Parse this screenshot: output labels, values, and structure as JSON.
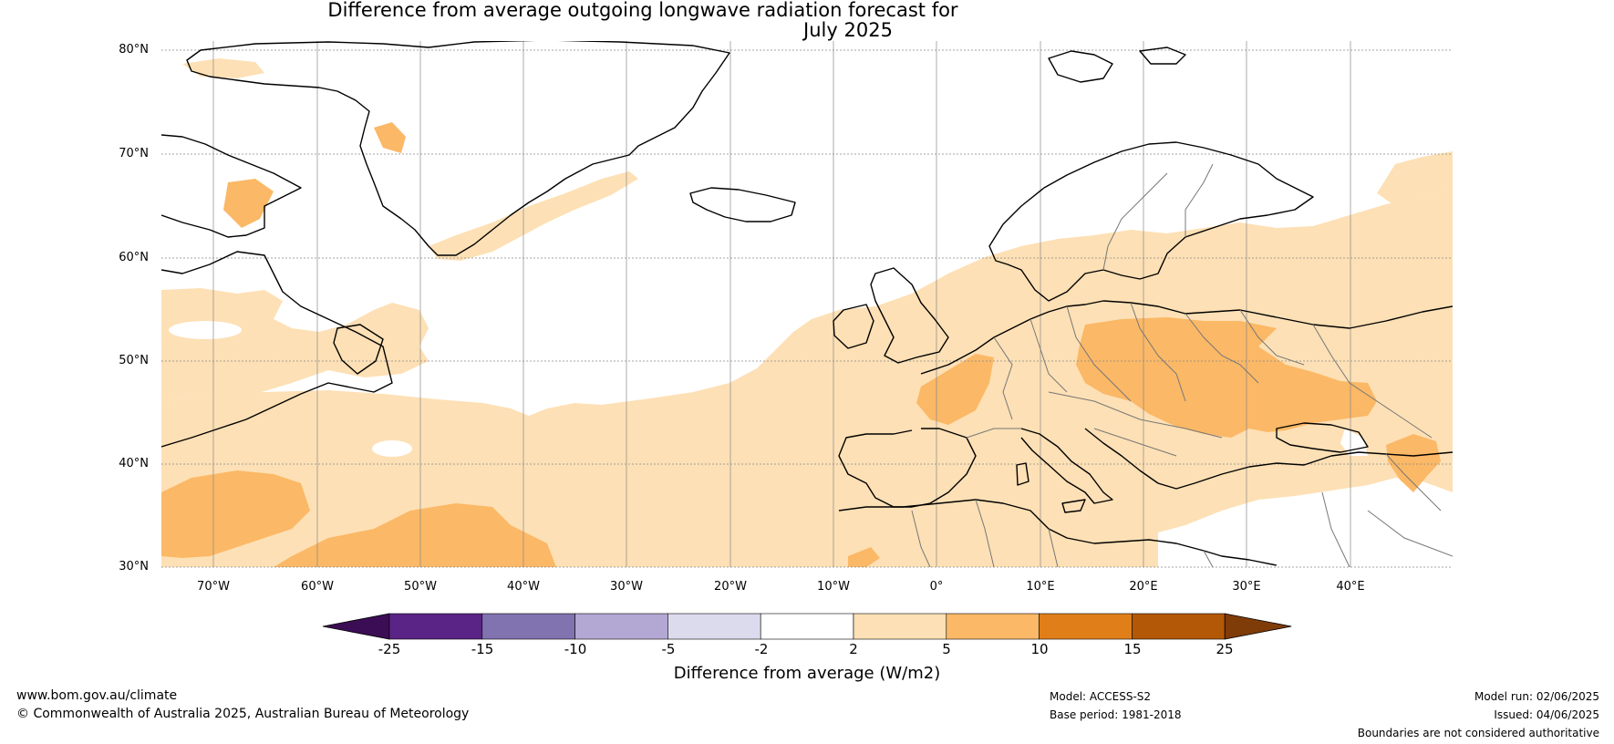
{
  "title": {
    "line1": "Difference from average outgoing longwave radiation forecast for",
    "line2": "July 2025"
  },
  "map": {
    "lat_labels": [
      "80°N",
      "70°N",
      "60°N",
      "50°N",
      "40°N",
      "30°N"
    ],
    "lon_labels": [
      "70°W",
      "60°W",
      "50°W",
      "40°W",
      "30°W",
      "20°W",
      "10°W",
      "0°",
      "10°E",
      "20°E",
      "30°E",
      "40°E"
    ],
    "colors": {
      "ocean_land_default": "#ffffff",
      "band_2_5": "#fde0b5",
      "band_5_10": "#fbb866",
      "coastline": "#000000",
      "borders": "#777777",
      "gridline": "#888888"
    }
  },
  "colorbar": {
    "ticks": [
      "-25",
      "-15",
      "-10",
      "-5",
      "-2",
      "2",
      "5",
      "10",
      "15",
      "25"
    ],
    "colors": [
      "#3b0d54",
      "#5a2386",
      "#8172b0",
      "#b3a8d4",
      "#dcdaed",
      "#ffffff",
      "#fde0b5",
      "#fbb866",
      "#e07f1a",
      "#b35806",
      "#7f3b08"
    ],
    "title": "Difference from average (W/m2)"
  },
  "footer": {
    "website": "www.bom.gov.au/climate",
    "copyright": "© Commonwealth of Australia 2025, Australian Bureau of Meteorology",
    "model": "Model: ACCESS-S2",
    "base_period": "Base period: 1981-2018",
    "model_run": "Model run: 02/06/2025",
    "issued": "Issued: 04/06/2025",
    "disclaimer": "Boundaries are not considered authoritative"
  }
}
